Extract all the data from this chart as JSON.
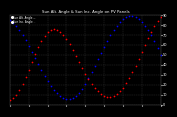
{
  "title": "Sun Alt. Angle & Sun Inc. Angle on PV Panels",
  "legend_blue": "Sun Alt. Angle --",
  "legend_red": "Sun Inc. Angle ..",
  "background_color": "#000000",
  "plot_bg": "#000000",
  "grid_color": "#444444",
  "blue_x": [
    0,
    1,
    2,
    3,
    4,
    5,
    6,
    7,
    8,
    9,
    10,
    11,
    12,
    13,
    14,
    15,
    16,
    17,
    18,
    19,
    20,
    21,
    22,
    23,
    24,
    25,
    26,
    27,
    28,
    29,
    30,
    31,
    32,
    33,
    34,
    35,
    36,
    37,
    38,
    39,
    40,
    41,
    42,
    43,
    44,
    45,
    46,
    47,
    48
  ],
  "blue_y": [
    85,
    82,
    79,
    75,
    70,
    65,
    59,
    53,
    47,
    41,
    35,
    29,
    24,
    19,
    15,
    12,
    9,
    7,
    6,
    6,
    7,
    9,
    12,
    16,
    21,
    27,
    33,
    39,
    46,
    52,
    58,
    64,
    70,
    75,
    79,
    83,
    86,
    88,
    89,
    89,
    88,
    86,
    83,
    79,
    75,
    70,
    64,
    57,
    50
  ],
  "red_x": [
    0,
    1,
    2,
    3,
    4,
    5,
    6,
    7,
    8,
    9,
    10,
    11,
    12,
    13,
    14,
    15,
    16,
    17,
    18,
    19,
    20,
    21,
    22,
    23,
    24,
    25,
    26,
    27,
    28,
    29,
    30,
    31,
    32,
    33,
    34,
    35,
    36,
    37,
    38,
    39,
    40,
    41,
    42,
    43,
    44,
    45,
    46,
    47,
    48
  ],
  "red_y": [
    5,
    7,
    10,
    15,
    21,
    28,
    35,
    43,
    51,
    58,
    64,
    69,
    73,
    75,
    76,
    75,
    73,
    70,
    66,
    61,
    55,
    49,
    43,
    37,
    31,
    26,
    21,
    17,
    14,
    11,
    9,
    8,
    8,
    9,
    11,
    14,
    17,
    22,
    27,
    33,
    39,
    46,
    53,
    60,
    67,
    73,
    79,
    84,
    88
  ],
  "ylim": [
    0,
    90
  ],
  "xlim": [
    0,
    48
  ],
  "ytick_vals": [
    0,
    10,
    20,
    30,
    40,
    50,
    60,
    70,
    80,
    90
  ],
  "ytick_labels": [
    "0",
    "10",
    "20",
    "30",
    "40",
    "50",
    "60",
    "70",
    "80",
    "90"
  ],
  "xtick_vals": [
    0,
    6,
    12,
    18,
    24,
    30,
    36,
    42,
    48
  ],
  "xtick_labels": [
    "",
    "",
    "",
    "",
    "",
    "",
    "",
    "",
    ""
  ],
  "marker_size": 1.5,
  "text_color": "#ffffff",
  "title_fontsize": 2.8,
  "tick_fontsize": 2.5
}
